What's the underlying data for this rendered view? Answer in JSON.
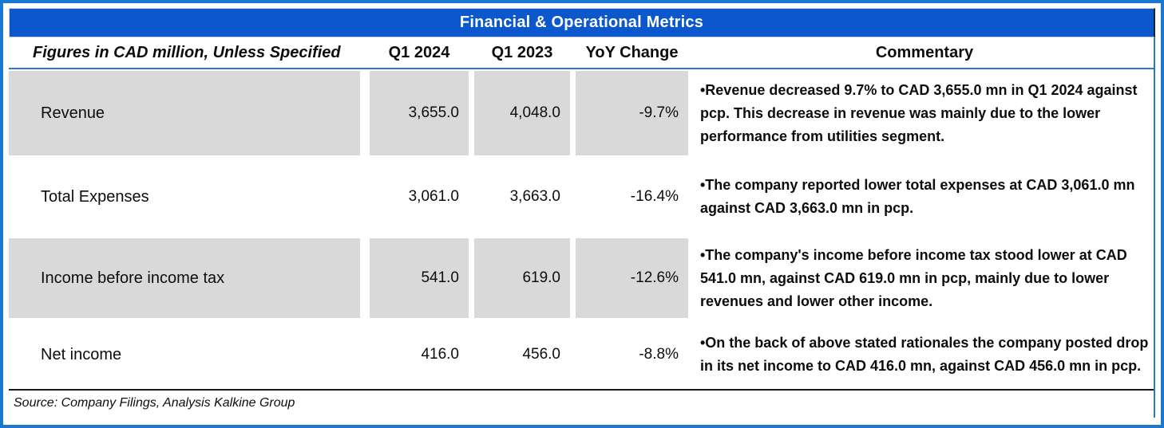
{
  "title": "Financial & Operational Metrics",
  "table": {
    "columns": {
      "label": "Figures in CAD million, Unless Specified",
      "q1_2024": "Q1 2024",
      "q1_2023": "Q1 2023",
      "yoy": "YoY Change",
      "commentary": "Commentary"
    },
    "rows": [
      {
        "label": "Revenue",
        "q1_2024": "3,655.0",
        "q1_2023": "4,048.0",
        "yoy": "-9.7%",
        "commentary": "•Revenue decreased 9.7% to CAD 3,655.0 mn in Q1 2024 against pcp. This decrease in revenue was mainly due to the lower performance from utilities segment.",
        "shaded": true
      },
      {
        "label": "Total Expenses",
        "q1_2024": "3,061.0",
        "q1_2023": "3,663.0",
        "yoy": "-16.4%",
        "commentary": "•The company reported lower total expenses at CAD 3,061.0 mn against CAD 3,663.0 mn in pcp.",
        "shaded": false
      },
      {
        "label": "Income before income tax",
        "q1_2024": "541.0",
        "q1_2023": "619.0",
        "yoy": "-12.6%",
        "commentary": "•The company's income before income tax stood lower at CAD 541.0 mn, against CAD 619.0 mn in pcp, mainly due to lower revenues and lower other income.",
        "shaded": true
      },
      {
        "label": "Net income",
        "q1_2024": "416.0",
        "q1_2023": "456.0",
        "yoy": "-8.8%",
        "commentary": "•On the back of above stated rationales the company posted drop in its net income to CAD 416.0 mn, against CAD 456.0 mn in pcp.",
        "shaded": false
      }
    ]
  },
  "source": "Source: Company Filings, Analysis Kalkine Group",
  "colors": {
    "accent_blue": "#0b57ce",
    "frame_blue": "#1a77d2",
    "rule_blue": "#2878cc",
    "row_shade": "#d9d9d9",
    "source_rule": "#1a1a1a"
  }
}
